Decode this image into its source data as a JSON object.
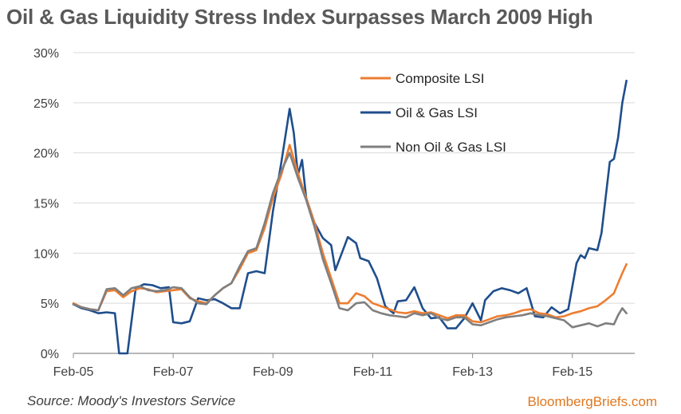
{
  "title": "Oil & Gas Liquidity Stress Index Surpasses March 2009 High",
  "source": "Source: Moody's Investors Service",
  "brand": "BloombergBriefs.com",
  "chart_data": {
    "type": "line",
    "title": "Oil & Gas Liquidity Stress Index Surpasses March 2009 High",
    "xlabel": "",
    "ylabel": "",
    "x_ticks": [
      "Feb-05",
      "Feb-07",
      "Feb-09",
      "Feb-11",
      "Feb-13",
      "Feb-15"
    ],
    "y_ticks": [
      "0%",
      "5%",
      "10%",
      "15%",
      "20%",
      "25%",
      "30%"
    ],
    "ylim": [
      0,
      30
    ],
    "xlim": [
      "2005-02",
      "2016-03"
    ],
    "grid": "horizontal",
    "legend_position": "top-right",
    "series": [
      {
        "name": "Composite LSI",
        "color": "#ed7d31",
        "points": [
          [
            "2005-02",
            5.0
          ],
          [
            "2005-04",
            4.6
          ],
          [
            "2005-06",
            4.4
          ],
          [
            "2005-08",
            4.3
          ],
          [
            "2005-10",
            6.2
          ],
          [
            "2005-12",
            6.3
          ],
          [
            "2006-02",
            5.6
          ],
          [
            "2006-04",
            6.2
          ],
          [
            "2006-06",
            6.5
          ],
          [
            "2006-08",
            6.4
          ],
          [
            "2006-10",
            6.1
          ],
          [
            "2006-12",
            6.2
          ],
          [
            "2007-02",
            6.3
          ],
          [
            "2007-04",
            6.4
          ],
          [
            "2007-06",
            5.5
          ],
          [
            "2007-08",
            5.2
          ],
          [
            "2007-10",
            5.0
          ],
          [
            "2007-12",
            5.8
          ],
          [
            "2008-02",
            6.5
          ],
          [
            "2008-04",
            7.0
          ],
          [
            "2008-06",
            8.4
          ],
          [
            "2008-08",
            10.0
          ],
          [
            "2008-10",
            10.3
          ],
          [
            "2008-12",
            12.5
          ],
          [
            "2009-02",
            15.5
          ],
          [
            "2009-04",
            17.8
          ],
          [
            "2009-06",
            20.8
          ],
          [
            "2009-08",
            18.0
          ],
          [
            "2009-10",
            15.5
          ],
          [
            "2009-12",
            13.0
          ],
          [
            "2010-02",
            10.0
          ],
          [
            "2010-04",
            7.5
          ],
          [
            "2010-06",
            5.0
          ],
          [
            "2010-08",
            5.0
          ],
          [
            "2010-10",
            6.0
          ],
          [
            "2010-12",
            5.7
          ],
          [
            "2011-02",
            5.0
          ],
          [
            "2011-04",
            4.7
          ],
          [
            "2011-06",
            4.4
          ],
          [
            "2011-08",
            4.1
          ],
          [
            "2011-10",
            4.0
          ],
          [
            "2011-12",
            4.2
          ],
          [
            "2012-02",
            4.0
          ],
          [
            "2012-04",
            4.1
          ],
          [
            "2012-06",
            3.8
          ],
          [
            "2012-08",
            3.5
          ],
          [
            "2012-10",
            3.8
          ],
          [
            "2012-12",
            3.8
          ],
          [
            "2013-02",
            3.2
          ],
          [
            "2013-04",
            3.1
          ],
          [
            "2013-06",
            3.4
          ],
          [
            "2013-08",
            3.7
          ],
          [
            "2013-10",
            3.8
          ],
          [
            "2013-12",
            4.0
          ],
          [
            "2014-02",
            4.3
          ],
          [
            "2014-04",
            4.4
          ],
          [
            "2014-06",
            4.0
          ],
          [
            "2014-08",
            3.9
          ],
          [
            "2014-10",
            3.6
          ],
          [
            "2014-12",
            3.7
          ],
          [
            "2015-02",
            4.0
          ],
          [
            "2015-04",
            4.2
          ],
          [
            "2015-06",
            4.5
          ],
          [
            "2015-08",
            4.7
          ],
          [
            "2015-10",
            5.3
          ],
          [
            "2015-12",
            6.0
          ],
          [
            "2016-01",
            7.0
          ],
          [
            "2016-02",
            8.0
          ],
          [
            "2016-03",
            8.9
          ]
        ]
      },
      {
        "name": "Oil & Gas LSI",
        "color": "#1f4e8c",
        "points": [
          [
            "2005-02",
            4.9
          ],
          [
            "2005-04",
            4.5
          ],
          [
            "2005-06",
            4.3
          ],
          [
            "2005-08",
            4.0
          ],
          [
            "2005-10",
            4.1
          ],
          [
            "2005-12",
            4.0
          ],
          [
            "2006-01",
            0.0
          ],
          [
            "2006-03",
            0.0
          ],
          [
            "2006-05",
            6.5
          ],
          [
            "2006-07",
            6.9
          ],
          [
            "2006-09",
            6.8
          ],
          [
            "2006-11",
            6.5
          ],
          [
            "2007-01",
            6.6
          ],
          [
            "2007-02",
            3.1
          ],
          [
            "2007-04",
            3.0
          ],
          [
            "2007-06",
            3.2
          ],
          [
            "2007-08",
            5.5
          ],
          [
            "2007-10",
            5.3
          ],
          [
            "2007-12",
            5.4
          ],
          [
            "2008-02",
            5.0
          ],
          [
            "2008-04",
            4.5
          ],
          [
            "2008-06",
            4.5
          ],
          [
            "2008-08",
            8.0
          ],
          [
            "2008-10",
            8.2
          ],
          [
            "2008-12",
            8.0
          ],
          [
            "2009-02",
            14.2
          ],
          [
            "2009-04",
            19.0
          ],
          [
            "2009-06",
            24.4
          ],
          [
            "2009-07",
            22.0
          ],
          [
            "2009-08",
            17.8
          ],
          [
            "2009-09",
            19.3
          ],
          [
            "2009-10",
            15.5
          ],
          [
            "2009-12",
            13.0
          ],
          [
            "2010-02",
            11.5
          ],
          [
            "2010-04",
            10.8
          ],
          [
            "2010-05",
            8.3
          ],
          [
            "2010-07",
            10.5
          ],
          [
            "2010-08",
            11.6
          ],
          [
            "2010-10",
            11.0
          ],
          [
            "2010-11",
            9.5
          ],
          [
            "2011-01",
            9.2
          ],
          [
            "2011-03",
            7.5
          ],
          [
            "2011-05",
            4.7
          ],
          [
            "2011-07",
            4.0
          ],
          [
            "2011-08",
            5.2
          ],
          [
            "2011-10",
            5.3
          ],
          [
            "2011-12",
            6.6
          ],
          [
            "2012-02",
            4.5
          ],
          [
            "2012-04",
            3.5
          ],
          [
            "2012-06",
            3.6
          ],
          [
            "2012-08",
            2.5
          ],
          [
            "2012-10",
            2.5
          ],
          [
            "2012-12",
            3.5
          ],
          [
            "2013-02",
            5.0
          ],
          [
            "2013-04",
            3.3
          ],
          [
            "2013-05",
            5.3
          ],
          [
            "2013-07",
            6.2
          ],
          [
            "2013-09",
            6.5
          ],
          [
            "2013-11",
            6.3
          ],
          [
            "2014-01",
            6.0
          ],
          [
            "2014-03",
            6.5
          ],
          [
            "2014-05",
            3.7
          ],
          [
            "2014-07",
            3.6
          ],
          [
            "2014-09",
            4.6
          ],
          [
            "2014-11",
            4.0
          ],
          [
            "2015-01",
            4.4
          ],
          [
            "2015-03",
            9.0
          ],
          [
            "2015-04",
            9.8
          ],
          [
            "2015-05",
            9.5
          ],
          [
            "2015-06",
            10.5
          ],
          [
            "2015-08",
            10.3
          ],
          [
            "2015-09",
            12.0
          ],
          [
            "2015-11",
            19.1
          ],
          [
            "2015-12",
            19.4
          ],
          [
            "2016-01",
            21.5
          ],
          [
            "2016-02",
            25.0
          ],
          [
            "2016-03",
            27.2
          ]
        ]
      },
      {
        "name": "Non Oil & Gas LSI",
        "color": "#7f7f7f",
        "points": [
          [
            "2005-02",
            4.9
          ],
          [
            "2005-04",
            4.6
          ],
          [
            "2005-06",
            4.4
          ],
          [
            "2005-08",
            4.3
          ],
          [
            "2005-10",
            6.4
          ],
          [
            "2005-12",
            6.5
          ],
          [
            "2006-02",
            5.8
          ],
          [
            "2006-04",
            6.5
          ],
          [
            "2006-06",
            6.7
          ],
          [
            "2006-08",
            6.3
          ],
          [
            "2006-10",
            6.2
          ],
          [
            "2006-12",
            6.3
          ],
          [
            "2007-02",
            6.6
          ],
          [
            "2007-04",
            6.5
          ],
          [
            "2007-06",
            5.6
          ],
          [
            "2007-08",
            5.0
          ],
          [
            "2007-10",
            4.9
          ],
          [
            "2007-12",
            5.8
          ],
          [
            "2008-02",
            6.5
          ],
          [
            "2008-04",
            7.0
          ],
          [
            "2008-06",
            8.7
          ],
          [
            "2008-08",
            10.2
          ],
          [
            "2008-10",
            10.5
          ],
          [
            "2008-12",
            13.0
          ],
          [
            "2009-02",
            16.0
          ],
          [
            "2009-04",
            18.2
          ],
          [
            "2009-06",
            20.0
          ],
          [
            "2009-08",
            17.5
          ],
          [
            "2009-10",
            15.3
          ],
          [
            "2009-12",
            12.6
          ],
          [
            "2010-02",
            9.4
          ],
          [
            "2010-04",
            7.0
          ],
          [
            "2010-06",
            4.5
          ],
          [
            "2010-08",
            4.3
          ],
          [
            "2010-10",
            5.0
          ],
          [
            "2010-12",
            5.1
          ],
          [
            "2011-02",
            4.3
          ],
          [
            "2011-04",
            4.0
          ],
          [
            "2011-06",
            3.8
          ],
          [
            "2011-08",
            3.7
          ],
          [
            "2011-10",
            3.6
          ],
          [
            "2011-12",
            4.0
          ],
          [
            "2012-02",
            3.8
          ],
          [
            "2012-04",
            4.0
          ],
          [
            "2012-06",
            3.5
          ],
          [
            "2012-08",
            3.3
          ],
          [
            "2012-10",
            3.6
          ],
          [
            "2012-12",
            3.6
          ],
          [
            "2013-02",
            2.9
          ],
          [
            "2013-04",
            2.8
          ],
          [
            "2013-06",
            3.1
          ],
          [
            "2013-08",
            3.4
          ],
          [
            "2013-10",
            3.6
          ],
          [
            "2013-12",
            3.7
          ],
          [
            "2014-02",
            3.8
          ],
          [
            "2014-04",
            4.0
          ],
          [
            "2014-06",
            3.8
          ],
          [
            "2014-08",
            3.7
          ],
          [
            "2014-10",
            3.5
          ],
          [
            "2014-12",
            3.3
          ],
          [
            "2015-02",
            2.6
          ],
          [
            "2015-04",
            2.8
          ],
          [
            "2015-06",
            3.0
          ],
          [
            "2015-08",
            2.7
          ],
          [
            "2015-10",
            3.0
          ],
          [
            "2015-12",
            2.9
          ],
          [
            "2016-01",
            3.8
          ],
          [
            "2016-02",
            4.5
          ],
          [
            "2016-03",
            4.0
          ]
        ]
      }
    ]
  }
}
